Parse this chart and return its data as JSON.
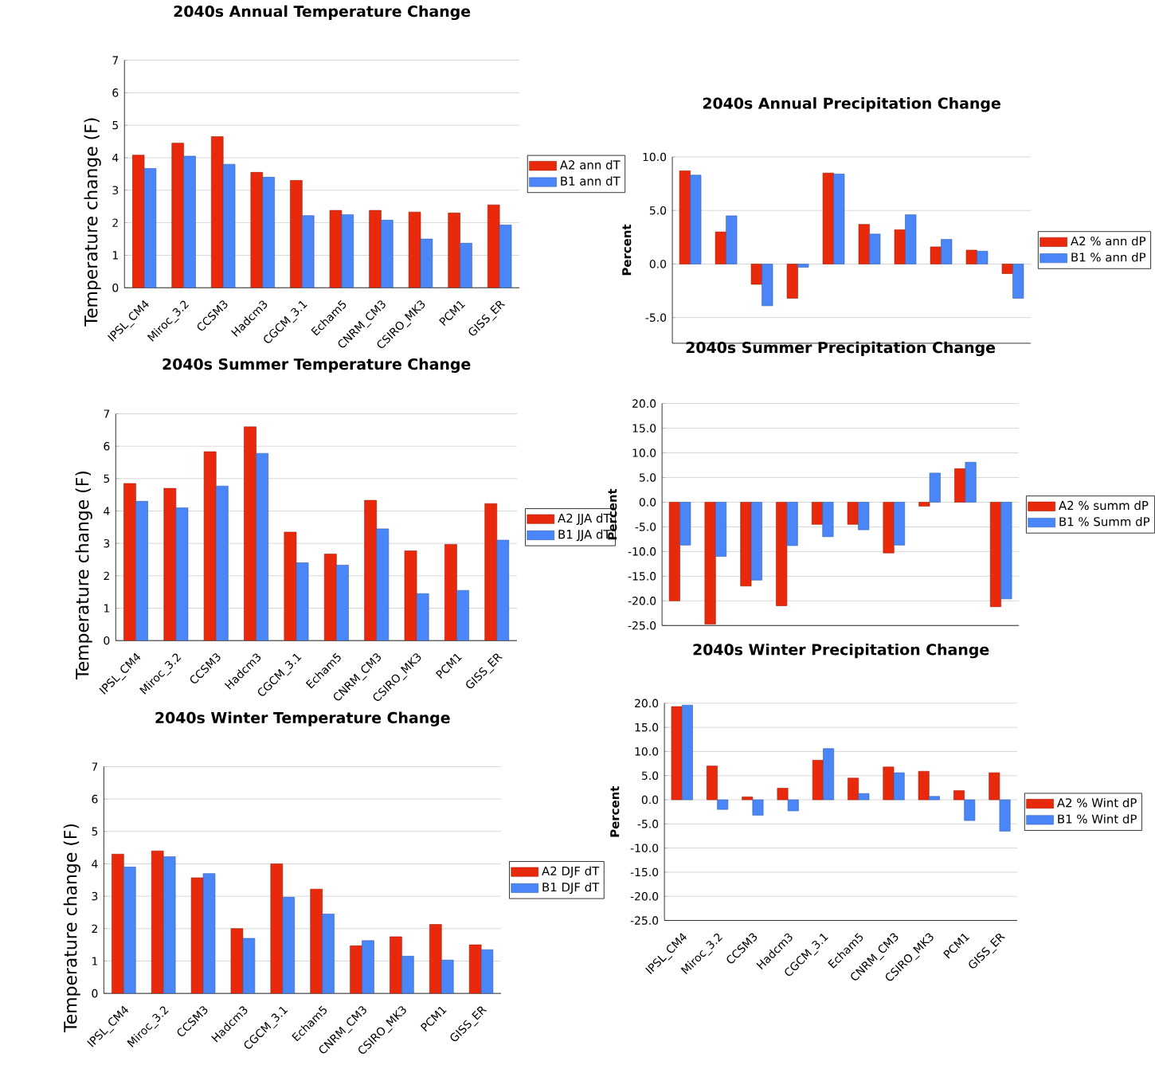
{
  "chart_data": [
    {
      "type": "bar",
      "title": "2040s Annual Temperature Change",
      "ylabel": "Temperature change (F)",
      "categories": [
        "IPSL_CM4",
        "Miroc_3.2",
        "CCSM3",
        "Hadcm3",
        "CGCM_3.1",
        "Echam5",
        "CNRM_CM3",
        "CSIRO_MK3",
        "PCM1",
        "GISS_ER"
      ],
      "series": [
        {
          "name": "A2 ann dT",
          "color": "#e8290b",
          "values": [
            4.08,
            4.45,
            4.65,
            3.55,
            3.3,
            2.38,
            2.38,
            2.33,
            2.3,
            2.55
          ]
        },
        {
          "name": "B1 ann dT",
          "color": "#4a86f7",
          "values": [
            3.67,
            4.05,
            3.8,
            3.4,
            2.22,
            2.25,
            2.08,
            1.5,
            1.37,
            1.93
          ]
        }
      ],
      "ylim": [
        0,
        7
      ],
      "yticks": [
        0,
        1,
        2,
        3,
        4,
        5,
        6,
        7
      ],
      "grid": "y",
      "legend": "right"
    },
    {
      "type": "bar",
      "title": "2040s Annual Precipitation Change",
      "ylabel": "Percent",
      "categories": [
        null,
        null,
        null,
        null,
        null,
        null,
        null,
        null,
        null,
        null
      ],
      "series": [
        {
          "name": "A2 % ann dP",
          "color": "#e8290b",
          "values": [
            8.7,
            3.0,
            -1.9,
            -3.2,
            8.5,
            3.7,
            3.2,
            1.6,
            1.3,
            -0.9
          ]
        },
        {
          "name": "B1 % ann dP",
          "color": "#4a86f7",
          "values": [
            8.3,
            4.5,
            -3.9,
            -0.3,
            8.4,
            2.8,
            4.6,
            2.3,
            1.2,
            -3.2
          ]
        }
      ],
      "ylim": [
        -7.4,
        10
      ],
      "yticks": [
        {
          "value": -5,
          "label": "-5.0"
        },
        {
          "value": 0,
          "label": "0.0"
        },
        {
          "value": 5,
          "label": "5.0"
        },
        {
          "value": 10,
          "label": "10.0"
        }
      ],
      "grid": "y",
      "legend": "right",
      "tick_labels": "y"
    },
    {
      "type": "bar",
      "title": "2040s Summer Temperature Change",
      "ylabel": "Temperature change (F)",
      "categories": [
        "IPSL_CM4",
        "Miroc_3.2",
        "CCSM3",
        "Hadcm3",
        "CGCM_3.1",
        "Echam5",
        "CNRM_CM3",
        "CSIRO_MK3",
        "PCM1",
        "GISS_ER"
      ],
      "series": [
        {
          "name": "A2 JJA dT",
          "color": "#e8290b",
          "values": [
            4.85,
            4.7,
            5.83,
            6.6,
            3.35,
            2.67,
            4.33,
            2.77,
            2.97,
            4.23
          ]
        },
        {
          "name": "B1 JJA dT",
          "color": "#4a86f7",
          "values": [
            4.3,
            4.1,
            4.77,
            5.78,
            2.4,
            2.33,
            3.45,
            1.45,
            1.55,
            3.1
          ]
        }
      ],
      "ylim": [
        0,
        7
      ],
      "yticks": [
        0,
        1,
        2,
        3,
        4,
        5,
        6,
        7
      ],
      "grid": "y",
      "legend": "right"
    },
    {
      "type": "bar",
      "title": "2040s Summer Precipitation Change",
      "ylabel": "Percent",
      "categories": [
        null,
        null,
        null,
        null,
        null,
        null,
        null,
        null,
        null,
        null
      ],
      "series": [
        {
          "name": "A2 % summ dP",
          "color": "#e8290b",
          "values": [
            -20,
            -24.7,
            -17,
            -21,
            -4.5,
            -4.5,
            -10.3,
            -0.8,
            6.8,
            -21.2
          ]
        },
        {
          "name": "B1 % Summ dP",
          "color": "#4a86f7",
          "values": [
            -8.7,
            -11,
            -15.8,
            -8.8,
            -7,
            -5.6,
            -8.7,
            5.9,
            8.1,
            -19.6
          ]
        }
      ],
      "ylim": [
        -25,
        20
      ],
      "yticks": [
        {
          "value": -25,
          "label": "-25.0"
        },
        {
          "value": -20,
          "label": "-20.0"
        },
        {
          "value": -15,
          "label": "-15.0"
        },
        {
          "value": -10,
          "label": "-10.0"
        },
        {
          "value": -5,
          "label": "-5.0"
        },
        {
          "value": 0,
          "label": "0.0"
        },
        {
          "value": 5,
          "label": "5.0"
        },
        {
          "value": 10,
          "label": "10.0"
        },
        {
          "value": 15,
          "label": "15.0"
        },
        {
          "value": 20,
          "label": "20.0"
        }
      ],
      "grid": "y",
      "legend": "right",
      "tick_labels": "y"
    },
    {
      "type": "bar",
      "title": "2040s Winter Temperature Change",
      "ylabel": "Temperature change (F)",
      "categories": [
        "IPSL_CM4",
        "Miroc_3.2",
        "CCSM3",
        "Hadcm3",
        "CGCM_3.1",
        "Echam5",
        "CNRM_CM3",
        "CSIRO_MK3",
        "PCM1",
        "GISS_ER"
      ],
      "series": [
        {
          "name": "A2 DJF dT",
          "color": "#e8290b",
          "values": [
            4.3,
            4.4,
            3.57,
            2.0,
            4.0,
            3.22,
            1.47,
            1.75,
            2.13,
            1.5
          ]
        },
        {
          "name": "B1 DJF dT",
          "color": "#4a86f7",
          "values": [
            3.9,
            4.22,
            3.7,
            1.7,
            2.97,
            2.45,
            1.63,
            1.15,
            1.03,
            1.35
          ]
        }
      ],
      "ylim": [
        0,
        7
      ],
      "yticks": [
        0,
        1,
        2,
        3,
        4,
        5,
        6,
        7
      ],
      "grid": "y",
      "legend": "right"
    },
    {
      "type": "bar",
      "title": "2040s Winter Precipitation Change",
      "ylabel": "Percent",
      "categories": [
        "IPSL_CM4",
        "Miroc_3.2",
        "CCSM3",
        "Hadcm3",
        "CGCM_3.1",
        "Echam5",
        "CNRM_CM3",
        "CSIRO_MK3",
        "PCM1",
        "GISS_ER"
      ],
      "series": [
        {
          "name": "A2 % Wint dP",
          "color": "#e8290b",
          "values": [
            19.3,
            7.0,
            0.6,
            2.4,
            8.2,
            4.5,
            6.8,
            5.9,
            1.9,
            5.6
          ]
        },
        {
          "name": "B1 % Wint dP",
          "color": "#4a86f7",
          "values": [
            19.6,
            -2.0,
            -3.2,
            -2.3,
            10.6,
            1.3,
            5.6,
            0.7,
            -4.3,
            -6.5
          ]
        }
      ],
      "ylim": [
        -25,
        20
      ],
      "yticks": [
        {
          "value": -25,
          "label": "-25.0"
        },
        {
          "value": -20,
          "label": "-20.0"
        },
        {
          "value": -15,
          "label": "-15.0"
        },
        {
          "value": -10,
          "label": "-10.0"
        },
        {
          "value": -5,
          "label": "-5.0"
        },
        {
          "value": 0,
          "label": "0.0"
        },
        {
          "value": 5,
          "label": "5.0"
        },
        {
          "value": 10,
          "label": "10.0"
        },
        {
          "value": 15,
          "label": "15.0"
        },
        {
          "value": 20,
          "label": "20.0"
        }
      ],
      "grid": "y",
      "legend": "right"
    }
  ]
}
